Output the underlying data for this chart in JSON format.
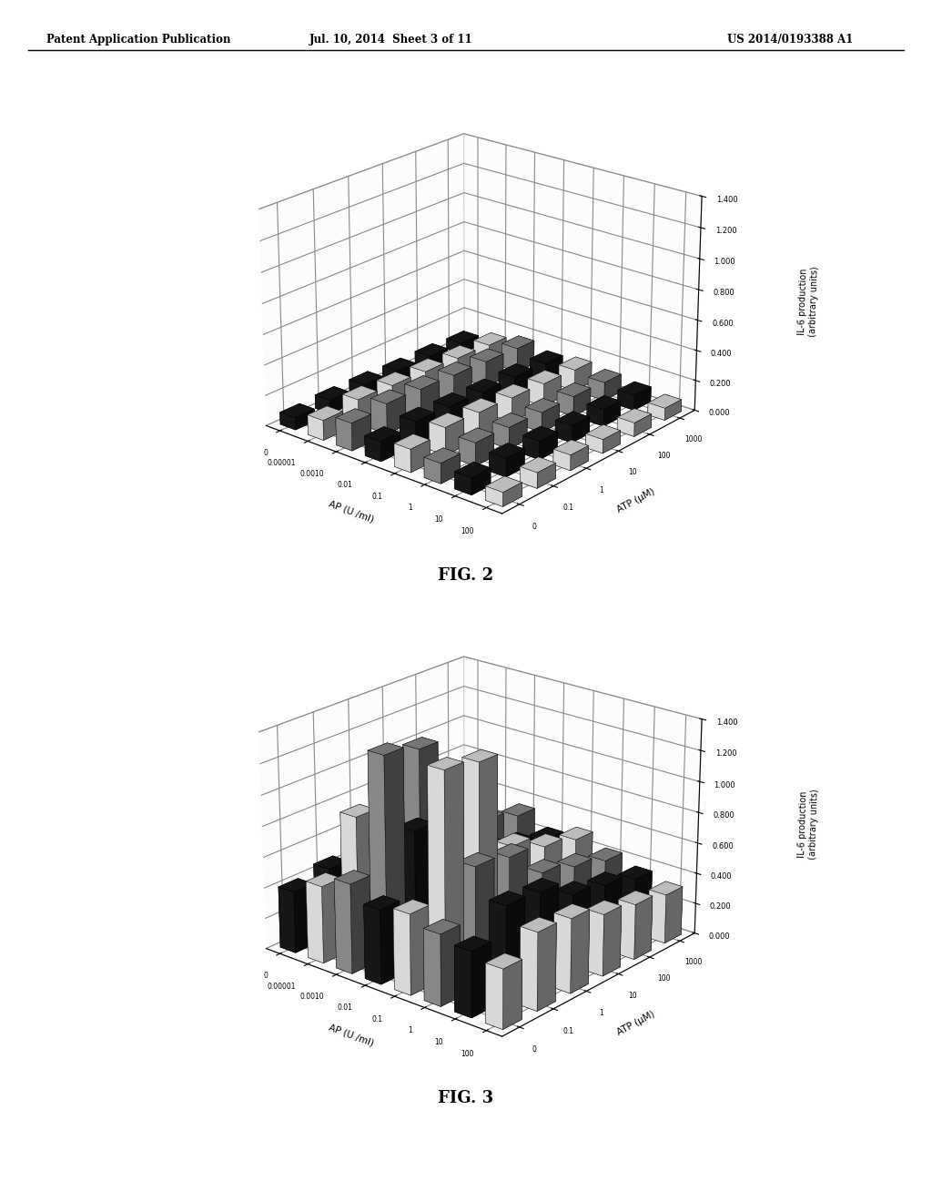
{
  "header_left": "Patent Application Publication",
  "header_mid": "Jul. 10, 2014  Sheet 3 of 11",
  "header_right": "US 2014/0193388 A1",
  "fig2_title": "FIG. 2",
  "fig3_title": "FIG. 3",
  "ap_labels": [
    "0",
    "0.00001",
    "0.0010",
    "0.01",
    "0.1",
    "1",
    "10",
    "100"
  ],
  "atp_labels": [
    "0",
    "0.1",
    "1",
    "10",
    "100",
    "1000"
  ],
  "ylabel": "IL-6 production\n(arbitrary units)",
  "xlabel": "AP (U /ml)",
  "atp_label": "ATP (μM)",
  "yticks": [
    0.0,
    0.2,
    0.4,
    0.6,
    0.8,
    1.0,
    1.2,
    1.4
  ],
  "background_color": "#ffffff",
  "bar_color_dark": "#1a1a1a",
  "bar_color_white": "#f5f5f5",
  "bar_color_gray": "#999999",
  "fig2_data": [
    [
      0.08,
      0.13,
      0.18,
      0.13,
      0.15,
      0.13,
      0.11,
      0.09
    ],
    [
      0.09,
      0.16,
      0.2,
      0.15,
      0.18,
      0.15,
      0.12,
      0.1
    ],
    [
      0.09,
      0.15,
      0.19,
      0.14,
      0.17,
      0.14,
      0.12,
      0.1
    ],
    [
      0.08,
      0.14,
      0.18,
      0.13,
      0.16,
      0.13,
      0.11,
      0.09
    ],
    [
      0.08,
      0.13,
      0.17,
      0.13,
      0.15,
      0.13,
      0.11,
      0.09
    ],
    [
      0.07,
      0.12,
      0.16,
      0.12,
      0.14,
      0.12,
      0.1,
      0.08
    ]
  ],
  "fig3_data": [
    [
      0.4,
      0.5,
      0.58,
      0.48,
      0.52,
      0.46,
      0.42,
      0.38
    ],
    [
      0.45,
      0.85,
      1.3,
      0.88,
      1.32,
      0.78,
      0.6,
      0.5
    ],
    [
      0.44,
      0.8,
      1.25,
      0.82,
      1.28,
      0.74,
      0.58,
      0.48
    ],
    [
      0.4,
      0.58,
      0.72,
      0.58,
      0.65,
      0.54,
      0.46,
      0.4
    ],
    [
      0.38,
      0.5,
      0.6,
      0.5,
      0.55,
      0.48,
      0.42,
      0.36
    ],
    [
      0.35,
      0.45,
      0.54,
      0.44,
      0.5,
      0.42,
      0.36,
      0.32
    ]
  ]
}
